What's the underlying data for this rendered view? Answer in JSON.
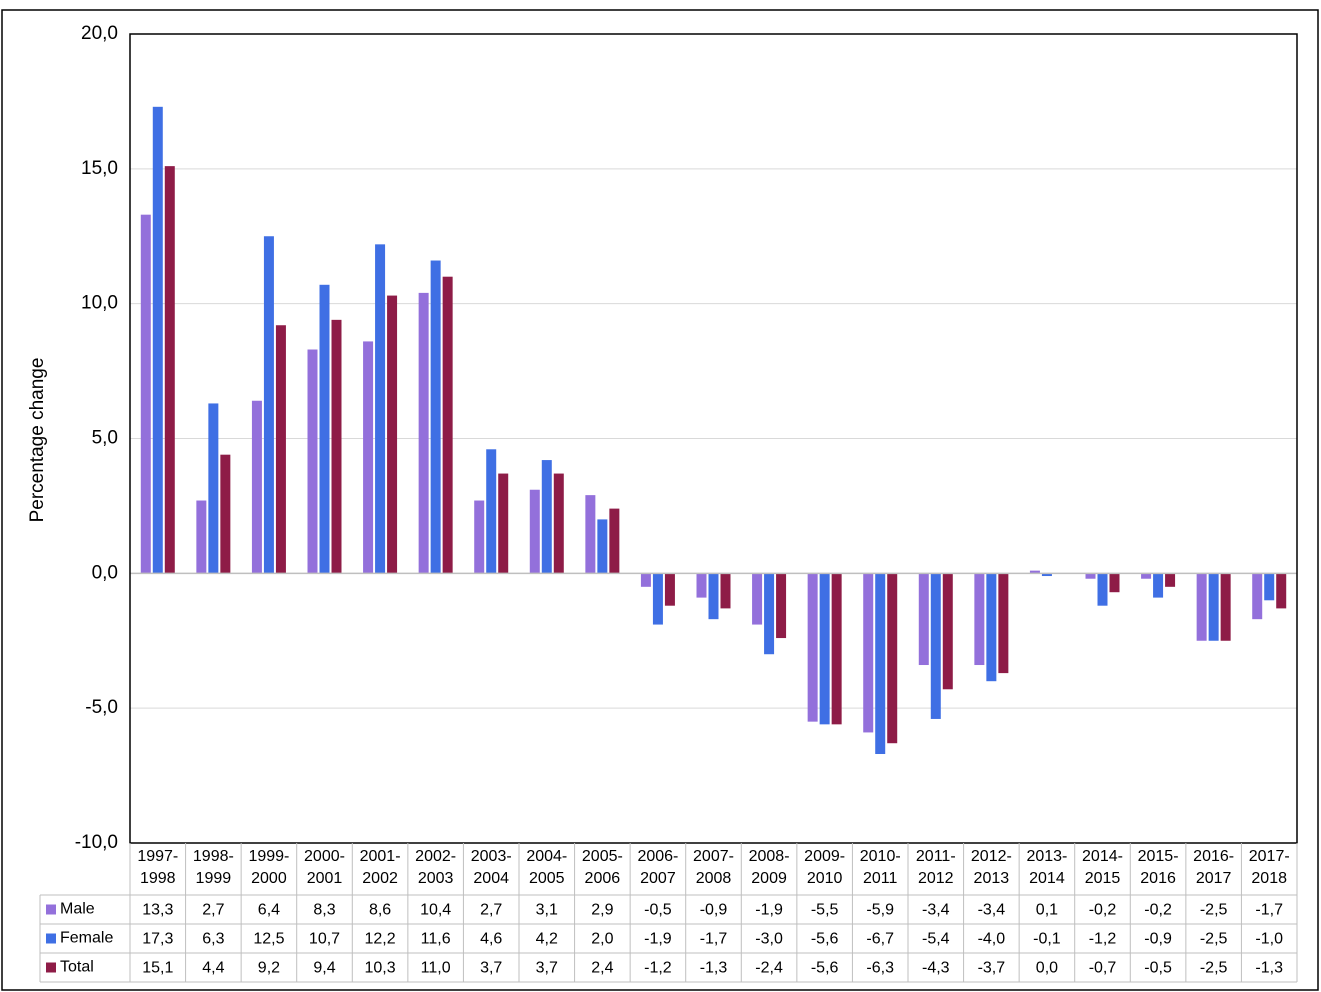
{
  "chart_data": {
    "type": "bar",
    "y_label": "Percentage change",
    "categories": [
      "1997-1998",
      "1998-1999",
      "1999-2000",
      "2000-2001",
      "2001-2002",
      "2002-2003",
      "2003-2004",
      "2004-2005",
      "2005-2006",
      "2006-2007",
      "2007-2008",
      "2008-2009",
      "2009-2010",
      "2010-2011",
      "2011-2012",
      "2012-2013",
      "2013-2014",
      "2014-2015",
      "2015-2016",
      "2016-2017",
      "2017-2018"
    ],
    "series": [
      {
        "name": "Male",
        "color": "#9370db",
        "values": [
          13.3,
          2.7,
          6.4,
          8.3,
          8.6,
          10.4,
          2.7,
          3.1,
          2.9,
          -0.5,
          -0.9,
          -1.9,
          -5.5,
          -5.9,
          -3.4,
          -3.4,
          0.1,
          -0.2,
          -0.2,
          -2.5,
          -1.7
        ],
        "value_labels": [
          "13,3",
          "2,7",
          "6,4",
          "8,3",
          "8,6",
          "10,4",
          "2,7",
          "3,1",
          "2,9",
          "-0,5",
          "-0,9",
          "-1,9",
          "-5,5",
          "-5,9",
          "-3,4",
          "-3,4",
          "0,1",
          "-0,2",
          "-0,2",
          "-2,5",
          "-1,7"
        ]
      },
      {
        "name": "Female",
        "color": "#3f6fe4",
        "values": [
          17.3,
          6.3,
          12.5,
          10.7,
          12.2,
          11.6,
          4.6,
          4.2,
          2.0,
          -1.9,
          -1.7,
          -3.0,
          -5.6,
          -6.7,
          -5.4,
          -4.0,
          -0.1,
          -1.2,
          -0.9,
          -2.5,
          -1.0
        ],
        "value_labels": [
          "17,3",
          "6,3",
          "12,5",
          "10,7",
          "12,2",
          "11,6",
          "4,6",
          "4,2",
          "2,0",
          "-1,9",
          "-1,7",
          "-3,0",
          "-5,6",
          "-6,7",
          "-5,4",
          "-4,0",
          "-0,1",
          "-1,2",
          "-0,9",
          "-2,5",
          "-1,0"
        ]
      },
      {
        "name": "Total",
        "color": "#8e1c47",
        "values": [
          15.1,
          4.4,
          9.2,
          9.4,
          10.3,
          11.0,
          3.7,
          3.7,
          2.4,
          -1.2,
          -1.3,
          -2.4,
          -5.6,
          -6.3,
          -4.3,
          -3.7,
          0.0,
          -0.7,
          -0.5,
          -2.5,
          -1.3
        ],
        "value_labels": [
          "15,1",
          "4,4",
          "9,2",
          "9,4",
          "10,3",
          "11,0",
          "3,7",
          "3,7",
          "2,4",
          "-1,2",
          "-1,3",
          "-2,4",
          "-5,6",
          "-6,3",
          "-4,3",
          "-3,7",
          "0,0",
          "-0,7",
          "-0,5",
          "-2,5",
          "-1,3"
        ]
      }
    ],
    "ylim": [
      -10,
      20
    ],
    "yticks": [
      {
        "value": -10,
        "label": "-10,0"
      },
      {
        "value": -5,
        "label": "-5,0"
      },
      {
        "value": 0,
        "label": "0,0"
      },
      {
        "value": 5,
        "label": "5,0"
      },
      {
        "value": 10,
        "label": "10,0"
      },
      {
        "value": 15,
        "label": "15,0"
      },
      {
        "value": 20,
        "label": "20,0"
      }
    ],
    "grid": true
  }
}
